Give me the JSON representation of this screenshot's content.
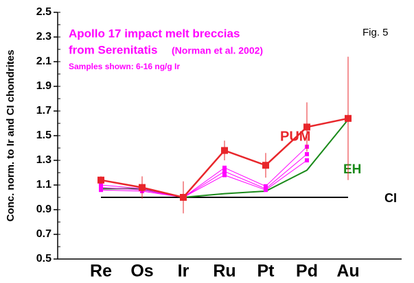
{
  "chart_data": {
    "type": "line",
    "title": "Apollo 17 impact melt breccias",
    "subtitle": "from Serenitatis",
    "citation": "(Norman et al. 2002)",
    "note": "Samples shown: 6-16 ng/g Ir",
    "figure_label": "Fig. 5",
    "y_label": "Conc. norm. to Ir and CI chondrites",
    "categories": [
      "Re",
      "Os",
      "Ir",
      "Ru",
      "Pt",
      "Pd",
      "Au"
    ],
    "ylim": [
      0.5,
      2.5
    ],
    "yticks": [
      0.5,
      0.7,
      0.9,
      1.1,
      1.3,
      1.5,
      1.7,
      1.9,
      2.1,
      2.3,
      2.5
    ],
    "series": [
      {
        "name": "CI",
        "color": "#000000",
        "values": [
          1.0,
          1.0,
          1.0,
          1.0,
          1.0,
          1.0,
          1.0
        ]
      },
      {
        "name": "EH",
        "color": "#1a8a1a",
        "values": [
          1.07,
          1.07,
          1.0,
          1.03,
          1.05,
          1.22,
          1.63
        ]
      },
      {
        "color": "#ff00ff",
        "values": [
          1.1,
          1.07,
          1.0,
          1.24,
          1.09,
          1.41,
          null
        ]
      },
      {
        "color": "#ff00ff",
        "values": [
          1.08,
          1.06,
          1.0,
          1.21,
          1.07,
          1.35,
          null
        ]
      },
      {
        "color": "#ff00ff",
        "values": [
          1.06,
          1.05,
          1.0,
          1.18,
          1.06,
          1.3,
          null
        ]
      },
      {
        "name": "PUM",
        "color": "#e8262b",
        "values": [
          1.14,
          1.08,
          1.0,
          1.38,
          1.26,
          1.57,
          1.64
        ],
        "errors": [
          0.03,
          0.09,
          0.13,
          0.08,
          0.1,
          0.2,
          0.5
        ]
      }
    ]
  }
}
